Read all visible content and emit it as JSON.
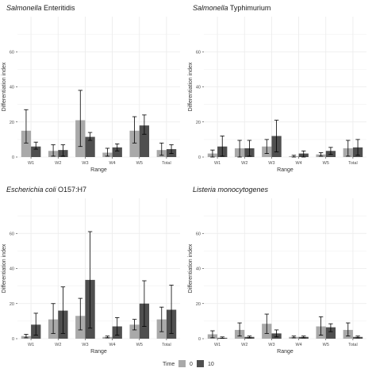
{
  "legend": {
    "title": "Time",
    "entries": [
      {
        "label": "0",
        "color": "#a9a9a9"
      },
      {
        "label": "10",
        "color": "#4f4f4f"
      }
    ]
  },
  "colors": {
    "panel_background": "#ffffff",
    "grid": "#ebebeb",
    "bar_time0": "#a9a9a9",
    "bar_time10": "#4f4f4f",
    "error_bar": "#000000"
  },
  "chart_data": [
    {
      "type": "bar",
      "title_italic": "Salmonella",
      "title_rest": " Enteritidis",
      "xlabel": "Range",
      "ylabel": "Differentiation index",
      "categories": [
        "W1",
        "W2",
        "W3",
        "W4",
        "W5",
        "Total"
      ],
      "ylim": [
        0,
        80
      ],
      "yticks": [
        0,
        20,
        40,
        60
      ],
      "grid": true,
      "series": [
        {
          "name": "0",
          "values": [
            15,
            3.5,
            21,
            2.5,
            15,
            4
          ],
          "err_low": [
            8,
            0.5,
            6,
            0.5,
            8,
            1
          ],
          "err_high": [
            27,
            7,
            38,
            5,
            23,
            8
          ]
        },
        {
          "name": "10",
          "values": [
            6,
            4,
            11.5,
            5.5,
            18,
            4.5
          ],
          "err_low": [
            4.5,
            0.5,
            9.5,
            3.5,
            13,
            2
          ],
          "err_high": [
            8.5,
            7,
            14,
            7.5,
            24,
            7
          ]
        }
      ]
    },
    {
      "type": "bar",
      "title_italic": "Salmonella",
      "title_rest": " Typhimurium",
      "xlabel": "Range",
      "ylabel": "Differentiation index",
      "categories": [
        "W1",
        "W2",
        "W3",
        "W4",
        "W5",
        "Total"
      ],
      "ylim": [
        0,
        80
      ],
      "yticks": [
        0,
        20,
        40,
        60
      ],
      "grid": true,
      "series": [
        {
          "name": "0",
          "values": [
            2,
            5,
            6,
            0.5,
            1.5,
            5
          ],
          "err_low": [
            0,
            0,
            2,
            0,
            0.5,
            0.5
          ],
          "err_high": [
            4,
            9.5,
            10,
            1,
            2.5,
            9.5
          ]
        },
        {
          "name": "10",
          "values": [
            6,
            5,
            12,
            2,
            3.5,
            5.5
          ],
          "err_low": [
            0.5,
            0.5,
            3,
            0,
            1.5,
            1
          ],
          "err_high": [
            12,
            9.5,
            21,
            3.5,
            5.5,
            10
          ]
        }
      ]
    },
    {
      "type": "bar",
      "title_italic": "Escherichia coli",
      "title_rest": " O157:H7",
      "xlabel": "Range",
      "ylabel": "Differentiation index",
      "categories": [
        "W1",
        "W2",
        "W3",
        "W4",
        "W5",
        "Total"
      ],
      "ylim": [
        0,
        80
      ],
      "yticks": [
        0,
        20,
        40,
        60
      ],
      "grid": true,
      "series": [
        {
          "name": "0",
          "values": [
            1.5,
            11,
            13,
            1,
            8,
            11
          ],
          "err_low": [
            0.5,
            3,
            5,
            0.5,
            5,
            4
          ],
          "err_high": [
            2.5,
            20,
            23,
            1.5,
            11,
            18
          ]
        },
        {
          "name": "10",
          "values": [
            8,
            16,
            33.5,
            7,
            20,
            16.5
          ],
          "err_low": [
            2,
            3,
            6,
            2,
            7,
            3
          ],
          "err_high": [
            14.5,
            29.5,
            61,
            12,
            33,
            30.5
          ]
        }
      ]
    },
    {
      "type": "bar",
      "title_italic": "Listeria monocytogenes",
      "title_rest": "",
      "xlabel": "Range",
      "ylabel": "Differentiation index",
      "categories": [
        "W1",
        "W2",
        "W3",
        "W4",
        "W5",
        "Total"
      ],
      "ylim": [
        0,
        80
      ],
      "yticks": [
        0,
        20,
        40,
        60
      ],
      "grid": true,
      "series": [
        {
          "name": "0",
          "values": [
            2.5,
            5,
            8.5,
            1,
            7,
            5
          ],
          "err_low": [
            0.5,
            1.5,
            3,
            0.5,
            2,
            1.5
          ],
          "err_high": [
            4.5,
            9,
            14,
            1.5,
            12.5,
            9
          ]
        },
        {
          "name": "10",
          "values": [
            0.5,
            1,
            3,
            1,
            6.5,
            1
          ],
          "err_low": [
            0.2,
            0.5,
            1,
            0.5,
            4,
            0.5
          ],
          "err_high": [
            1,
            1.5,
            5,
            1.5,
            8.5,
            1.5
          ]
        }
      ]
    }
  ]
}
